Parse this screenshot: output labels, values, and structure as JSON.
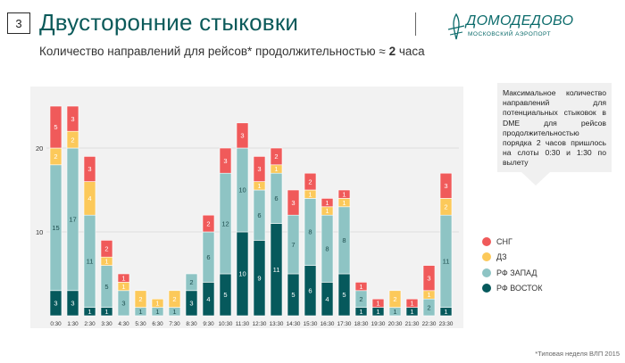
{
  "slide": {
    "number": "3",
    "title": "Двусторонние стыковки",
    "subtitle_text": "Количество направлений для рейсов* продолжительностью ≈",
    "subtitle_bold": "2",
    "subtitle_suffix": "часа",
    "logo_name": "ДОМОДЕДОВО",
    "logo_sub": "МОСКОВСКИЙ АЭРОПОРТ",
    "note": "Максимальное количество направлений для потенциальных стыковок в DME для рейсов продолжительностью порядка 2 часов пришлось на слоты 0:30 и 1:30 по вылету",
    "footnote": "*Типовая неделя ВЛП 2015"
  },
  "colors": {
    "СНГ": "#f05a5a",
    "ДЗ": "#fcc95a",
    "РФ ЗАПАД": "#8ec4c4",
    "РФ ВОСТОК": "#06595c",
    "panel": "#f2f2f2",
    "grid": "#d8d8d8"
  },
  "chart_data": {
    "type": "bar",
    "stacked": true,
    "categories": [
      "0:30",
      "1:30",
      "2:30",
      "3:30",
      "4:30",
      "5:30",
      "6:30",
      "7:30",
      "8:30",
      "9:30",
      "10:30",
      "11:30",
      "12:30",
      "13:30",
      "14:30",
      "15:30",
      "16:30",
      "17:30",
      "18:30",
      "19:30",
      "20:30",
      "21:30",
      "22:30",
      "23:30"
    ],
    "series": [
      {
        "name": "РФ ВОСТОК",
        "values": [
          3,
          3,
          1,
          1,
          0,
          0,
          0,
          0,
          3,
          4,
          5,
          10,
          9,
          11,
          5,
          6,
          4,
          5,
          1,
          1,
          0,
          1,
          0,
          1
        ]
      },
      {
        "name": "РФ ЗАПАД",
        "values": [
          15,
          17,
          11,
          5,
          3,
          1,
          1,
          1,
          2,
          6,
          12,
          10,
          6,
          6,
          7,
          8,
          8,
          8,
          2,
          0,
          1,
          0,
          2,
          11
        ]
      },
      {
        "name": "ДЗ",
        "values": [
          2,
          2,
          4,
          1,
          1,
          2,
          1,
          2,
          0,
          0,
          0,
          0,
          1,
          1,
          0,
          1,
          1,
          1,
          0,
          0,
          2,
          0,
          1,
          2
        ]
      },
      {
        "name": "СНГ",
        "values": [
          5,
          3,
          3,
          2,
          1,
          0,
          0,
          0,
          0,
          2,
          3,
          3,
          3,
          2,
          3,
          2,
          1,
          1,
          1,
          1,
          0,
          1,
          3,
          3
        ]
      }
    ],
    "yticks": [
      10,
      20
    ],
    "ylim": [
      0,
      26
    ],
    "legend_order": [
      "СНГ",
      "ДЗ",
      "РФ ЗАПАД",
      "РФ ВОСТОК"
    ],
    "legend_position": "right"
  }
}
